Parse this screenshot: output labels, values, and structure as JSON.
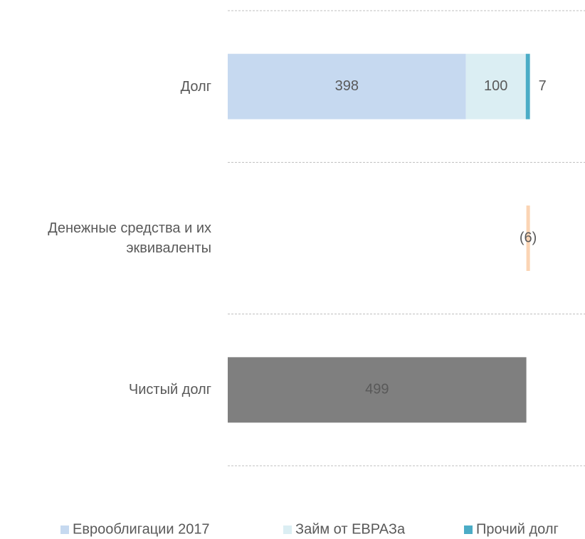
{
  "chart_data": {
    "type": "bar",
    "orientation": "horizontal",
    "categories": [
      "Долг",
      "Денежные средства и их эквиваленты",
      "Чистый долг"
    ],
    "series": [
      {
        "name": "Еврооблигации 2017",
        "color": "#c6d9f0",
        "values": [
          398,
          null,
          null
        ]
      },
      {
        "name": "Займ от ЕВРАЗа",
        "color": "#dbeef3",
        "values": [
          100,
          null,
          null
        ]
      },
      {
        "name": "Прочий долг",
        "color": "#4bacc6",
        "values": [
          7,
          null,
          null
        ]
      }
    ],
    "cash": {
      "value": -6,
      "value_label": "(6)",
      "color": "#fbd4b4"
    },
    "net_debt": {
      "value": 499,
      "color": "#7f7f7f"
    },
    "xlim": [
      0,
      597
    ],
    "grid": true,
    "legend": "bottom"
  }
}
